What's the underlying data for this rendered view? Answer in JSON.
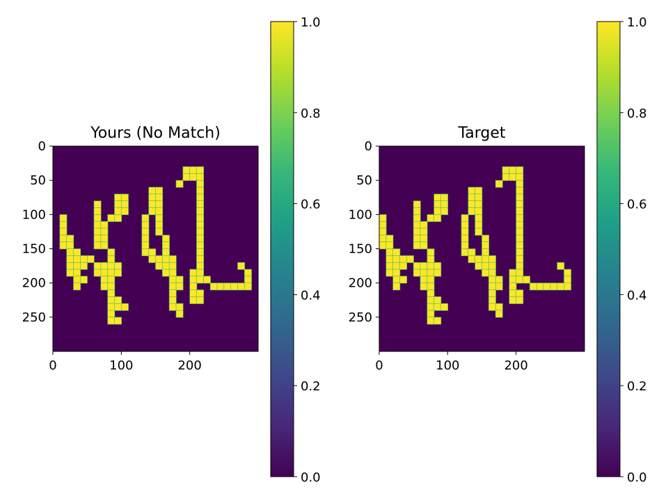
{
  "chart_data": [
    {
      "type": "heatmap",
      "title": "Yours (No Match)",
      "xlabel": "",
      "ylabel": "",
      "xlim": [
        0,
        300
      ],
      "ylim": [
        300,
        0
      ],
      "xticks": [
        0,
        100,
        200
      ],
      "yticks": [
        0,
        50,
        100,
        150,
        200,
        250
      ],
      "cell_size": 10,
      "grid": false,
      "colormap": "viridis",
      "colorbar": {
        "min": 0.0,
        "max": 1.0,
        "ticks": [
          "0.0",
          "0.2",
          "0.4",
          "0.6",
          "0.8",
          "1.0"
        ]
      },
      "rows": [
        "..............................",
        "..............................",
        "..............................",
        "...................###........",
        "...................###........",
        "..................#..#........",
        "..............##.....#........",
        ".........##...##.....#........",
        "......#..##...##.....#........",
        "......#..##...##.....#........",
        ".#....#.##...#.#.....#........",
        ".#....##.....#.#.....#........",
        ".#....##.....#.#.....#........",
        ".##...##.....#..#....#........",
        ".##...##.....#..#....#........",
        "..##....#....##.#....#........",
        "..####..#.....####...#........",
        "..###.####.....###...#.....#..",
        "..##..####......##..##......#.",
        "...##..##........##.###.....#.",
        "...#...##........##.#..######.",
        "........#........#..##........",
        "........##.......#..##........",
        "........###......##...........",
        "........#.........#...........",
        "........##....................",
        "..............................",
        "..............................",
        "..............................",
        ".............................."
      ]
    },
    {
      "type": "heatmap",
      "title": "Target",
      "xlabel": "",
      "ylabel": "",
      "xlim": [
        0,
        300
      ],
      "ylim": [
        300,
        0
      ],
      "xticks": [
        0,
        100,
        200
      ],
      "yticks": [
        0,
        50,
        100,
        150,
        200,
        250
      ],
      "cell_size": 10,
      "grid": false,
      "colormap": "viridis",
      "colorbar": {
        "min": 0.0,
        "max": 1.0,
        "ticks": [
          "0.0",
          "0.2",
          "0.4",
          "0.6",
          "0.8",
          "1.0"
        ]
      },
      "rows": [
        "..............................",
        "..............................",
        "..............................",
        "..................###.........",
        "..................###.........",
        ".................#..#.........",
        ".............##.....#.........",
        "........##...##.....#.........",
        ".....#..##...##.....#.........",
        ".....#..##...##.....#.........",
        "#....#.##...#.#.....#.........",
        "#....##.....#.#.....#.........",
        "#....##.....#.#.....#.........",
        "##...##.....#..#....#.........",
        "##...##.....#..#....#.........",
        ".##....#....##.#....#.........",
        ".####..#.....####...#.........",
        ".###.####.....###...#.....#...",
        ".##..####......##..##......#..",
        "..##..##........##.###.....#..",
        "..#...##........##.#..######..",
        ".......#........#..##.........",
        ".......##.......#..##.........",
        ".......###......##............",
        ".......#.........#............",
        ".......##.....................",
        "..............................",
        "..............................",
        "..............................",
        ".............................."
      ]
    }
  ]
}
